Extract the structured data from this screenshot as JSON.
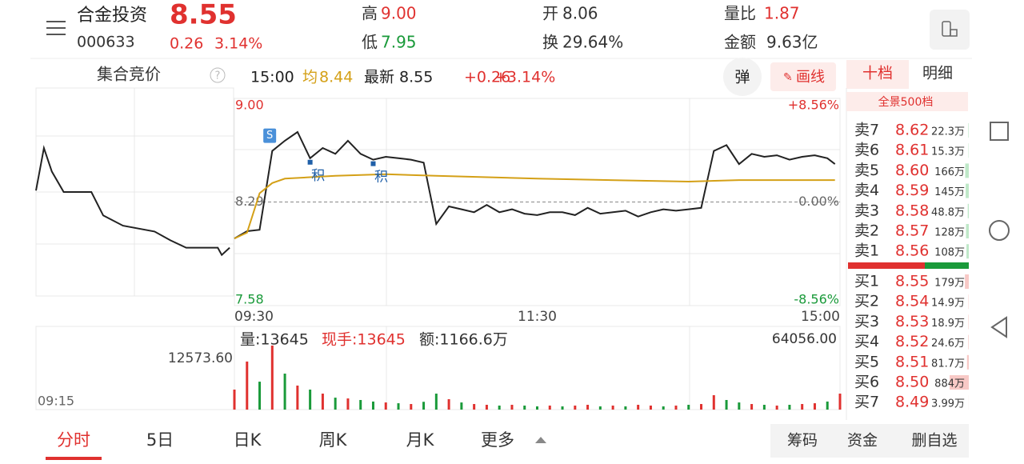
{
  "header": {
    "name": "合金投资",
    "code": "000633",
    "price": "8.55",
    "change": "0.26",
    "change_pct": "3.14%",
    "high_label": "高",
    "high": "9.00",
    "low_label": "低",
    "low": "7.95",
    "open_label": "开",
    "open": "8.06",
    "turnover_label": "换",
    "turnover": "29.64%",
    "vol_ratio_label": "量比",
    "vol_ratio": "1.87",
    "amount_label": "金额",
    "amount": "9.63亿"
  },
  "toolbar": {
    "auction": "集合竞价",
    "help": "?",
    "time": "15:00",
    "avg_label": "均",
    "avg": "8.44",
    "last_label": "最新",
    "last": "8.55",
    "chg": "+0.26",
    "chg_pct": "+3.14%",
    "pop": "弹",
    "draw": "画线",
    "tab_depth": "十档",
    "tab_detail": "明细"
  },
  "orderbook": {
    "title": "全景500档",
    "sell": [
      {
        "label": "卖7",
        "price": "8.62",
        "vol": 22.3,
        "vol_label": "22.3万"
      },
      {
        "label": "卖6",
        "price": "8.61",
        "vol": 15.3,
        "vol_label": "15.3万"
      },
      {
        "label": "卖5",
        "price": "8.60",
        "vol": 166,
        "vol_label": "166万"
      },
      {
        "label": "卖4",
        "price": "8.59",
        "vol": 145,
        "vol_label": "145万"
      },
      {
        "label": "卖3",
        "price": "8.58",
        "vol": 48.8,
        "vol_label": "48.8万"
      },
      {
        "label": "卖2",
        "price": "8.57",
        "vol": 128,
        "vol_label": "128万"
      },
      {
        "label": "卖1",
        "price": "8.56",
        "vol": 108,
        "vol_label": "108万"
      }
    ],
    "buy": [
      {
        "label": "买1",
        "price": "8.55",
        "vol": 179,
        "vol_label": "179万"
      },
      {
        "label": "买2",
        "price": "8.54",
        "vol": 14.9,
        "vol_label": "14.9万"
      },
      {
        "label": "买3",
        "price": "8.53",
        "vol": 18.9,
        "vol_label": "18.9万"
      },
      {
        "label": "买4",
        "price": "8.52",
        "vol": 24.6,
        "vol_label": "24.6万"
      },
      {
        "label": "买5",
        "price": "8.51",
        "vol": 81.7,
        "vol_label": "81.7万"
      },
      {
        "label": "买6",
        "price": "8.50",
        "vol": 884,
        "vol_label": "884万"
      },
      {
        "label": "买7",
        "price": "8.49",
        "vol": 3.99,
        "vol_label": "3.99万"
      }
    ]
  },
  "tabs": [
    "分时",
    "5日",
    "日K",
    "周K",
    "月K",
    "更多"
  ],
  "buttons": [
    "筹码",
    "资金",
    "删自选"
  ],
  "chart_data": [
    {
      "type": "line",
      "xlim": [
        0,
        240
      ],
      "ylim": [
        7.58,
        9.0
      ],
      "xticks": [
        {
          "value": 0,
          "label": "09:30"
        },
        {
          "value": 120,
          "label": "11:30"
        },
        {
          "value": 240,
          "label": "15:00"
        }
      ],
      "yticks": [
        {
          "value": 9.0,
          "label": "9.00"
        },
        {
          "value": 8.29,
          "label": "8.29"
        },
        {
          "value": 7.58,
          "label": "7.58"
        }
      ],
      "y2lim": [
        -8.56,
        8.56
      ],
      "y2ticks": [
        {
          "value": 8.56,
          "label": "+8.56%"
        },
        {
          "value": 0,
          "label": "0.00%"
        },
        {
          "value": -8.56,
          "label": "-8.56%"
        }
      ],
      "series": [
        {
          "color": "#222222",
          "x": [
            0,
            5,
            10,
            15,
            20,
            25,
            30,
            35,
            40,
            45,
            50,
            55,
            60,
            65,
            70,
            75,
            80,
            85,
            90,
            95,
            100,
            105,
            110,
            115,
            120,
            125,
            130,
            135,
            140,
            145,
            150,
            155,
            160,
            165,
            170,
            175,
            180,
            185,
            190,
            195,
            200,
            205,
            210,
            215,
            220,
            225,
            230,
            235,
            238
          ],
          "values": [
            8.04,
            8.09,
            8.1,
            8.64,
            8.71,
            8.77,
            8.59,
            8.66,
            8.62,
            8.71,
            8.62,
            8.58,
            8.6,
            8.59,
            8.58,
            8.56,
            8.14,
            8.26,
            8.24,
            8.22,
            8.27,
            8.22,
            8.24,
            8.21,
            8.2,
            8.22,
            8.22,
            8.2,
            8.25,
            8.21,
            8.22,
            8.23,
            8.19,
            8.22,
            8.24,
            8.23,
            8.24,
            8.25,
            8.64,
            8.68,
            8.55,
            8.62,
            8.6,
            8.61,
            8.58,
            8.6,
            8.61,
            8.59,
            8.55
          ]
        },
        {
          "color": "#d4a017",
          "x": [
            0,
            5,
            10,
            15,
            20,
            30,
            40,
            60,
            80,
            120,
            180,
            200,
            238
          ],
          "values": [
            8.04,
            8.08,
            8.35,
            8.42,
            8.45,
            8.46,
            8.47,
            8.48,
            8.47,
            8.45,
            8.43,
            8.44,
            8.44
          ]
        }
      ],
      "annotations": [
        {
          "text": "S",
          "x": 14
        },
        {
          "text": "积",
          "x": 30
        },
        {
          "text": "积",
          "x": 55
        }
      ]
    },
    {
      "type": "bar",
      "xlim": [
        0,
        240
      ],
      "ylim": [
        0,
        64056
      ],
      "yticks": [
        {
          "value": 64056,
          "label": "64056.00"
        }
      ],
      "info": [
        "量:13645",
        "现手:13645",
        "额:1166.6万"
      ],
      "auction_vol": "12573.60",
      "auction_time": "09:15",
      "x": [
        0,
        5,
        10,
        15,
        20,
        25,
        30,
        35,
        40,
        45,
        50,
        55,
        60,
        65,
        70,
        75,
        80,
        85,
        90,
        95,
        100,
        105,
        110,
        115,
        120,
        125,
        130,
        135,
        140,
        145,
        150,
        155,
        160,
        165,
        170,
        175,
        180,
        185,
        190,
        195,
        200,
        205,
        210,
        215,
        220,
        225,
        230,
        235,
        240
      ],
      "values": [
        15400,
        37000,
        21500,
        49300,
        27700,
        18500,
        15400,
        12300,
        9200,
        8600,
        7400,
        6200,
        5500,
        4900,
        4300,
        6000,
        12300,
        8000,
        5500,
        4300,
        3700,
        3100,
        3700,
        3100,
        2500,
        3100,
        2500,
        3100,
        3700,
        2500,
        3100,
        2500,
        3700,
        3100,
        2500,
        3100,
        3700,
        4300,
        11100,
        7400,
        5500,
        4300,
        3700,
        3100,
        3700,
        4300,
        4900,
        6200,
        12300
      ],
      "colors": [
        "#e0312f",
        "#e0312f",
        "#1a9a3a",
        "#e0312f",
        "#1a9a3a",
        "#e0312f",
        "#1a9a3a",
        "#e0312f",
        "#1a9a3a",
        "#e0312f",
        "#1a9a3a",
        "#1a9a3a",
        "#e0312f",
        "#1a9a3a",
        "#e0312f",
        "#1a9a3a",
        "#1a9a3a",
        "#e0312f",
        "#1a9a3a",
        "#e0312f",
        "#e0312f",
        "#1a9a3a",
        "#e0312f",
        "#1a9a3a",
        "#1a9a3a",
        "#e0312f",
        "#1a9a3a",
        "#e0312f",
        "#e0312f",
        "#1a9a3a",
        "#e0312f",
        "#1a9a3a",
        "#e0312f",
        "#e0312f",
        "#1a9a3a",
        "#e0312f",
        "#1a9a3a",
        "#e0312f",
        "#e0312f",
        "#1a9a3a",
        "#1a9a3a",
        "#e0312f",
        "#1a9a3a",
        "#e0312f",
        "#1a9a3a",
        "#e0312f",
        "#e0312f",
        "#1a9a3a",
        "#e0312f"
      ]
    },
    {
      "type": "line",
      "xlim": [
        0,
        10
      ],
      "ylim": [
        7.58,
        9.0
      ],
      "series": [
        {
          "color": "#222222",
          "x": [
            0,
            0.4,
            0.8,
            1.4,
            2.8,
            3.4,
            4.4,
            6.0,
            6.8,
            7.6,
            9.2,
            9.4,
            9.8
          ],
          "values": [
            8.3,
            8.59,
            8.43,
            8.29,
            8.29,
            8.13,
            8.06,
            8.02,
            7.96,
            7.91,
            7.91,
            7.86,
            7.91
          ]
        }
      ]
    }
  ]
}
